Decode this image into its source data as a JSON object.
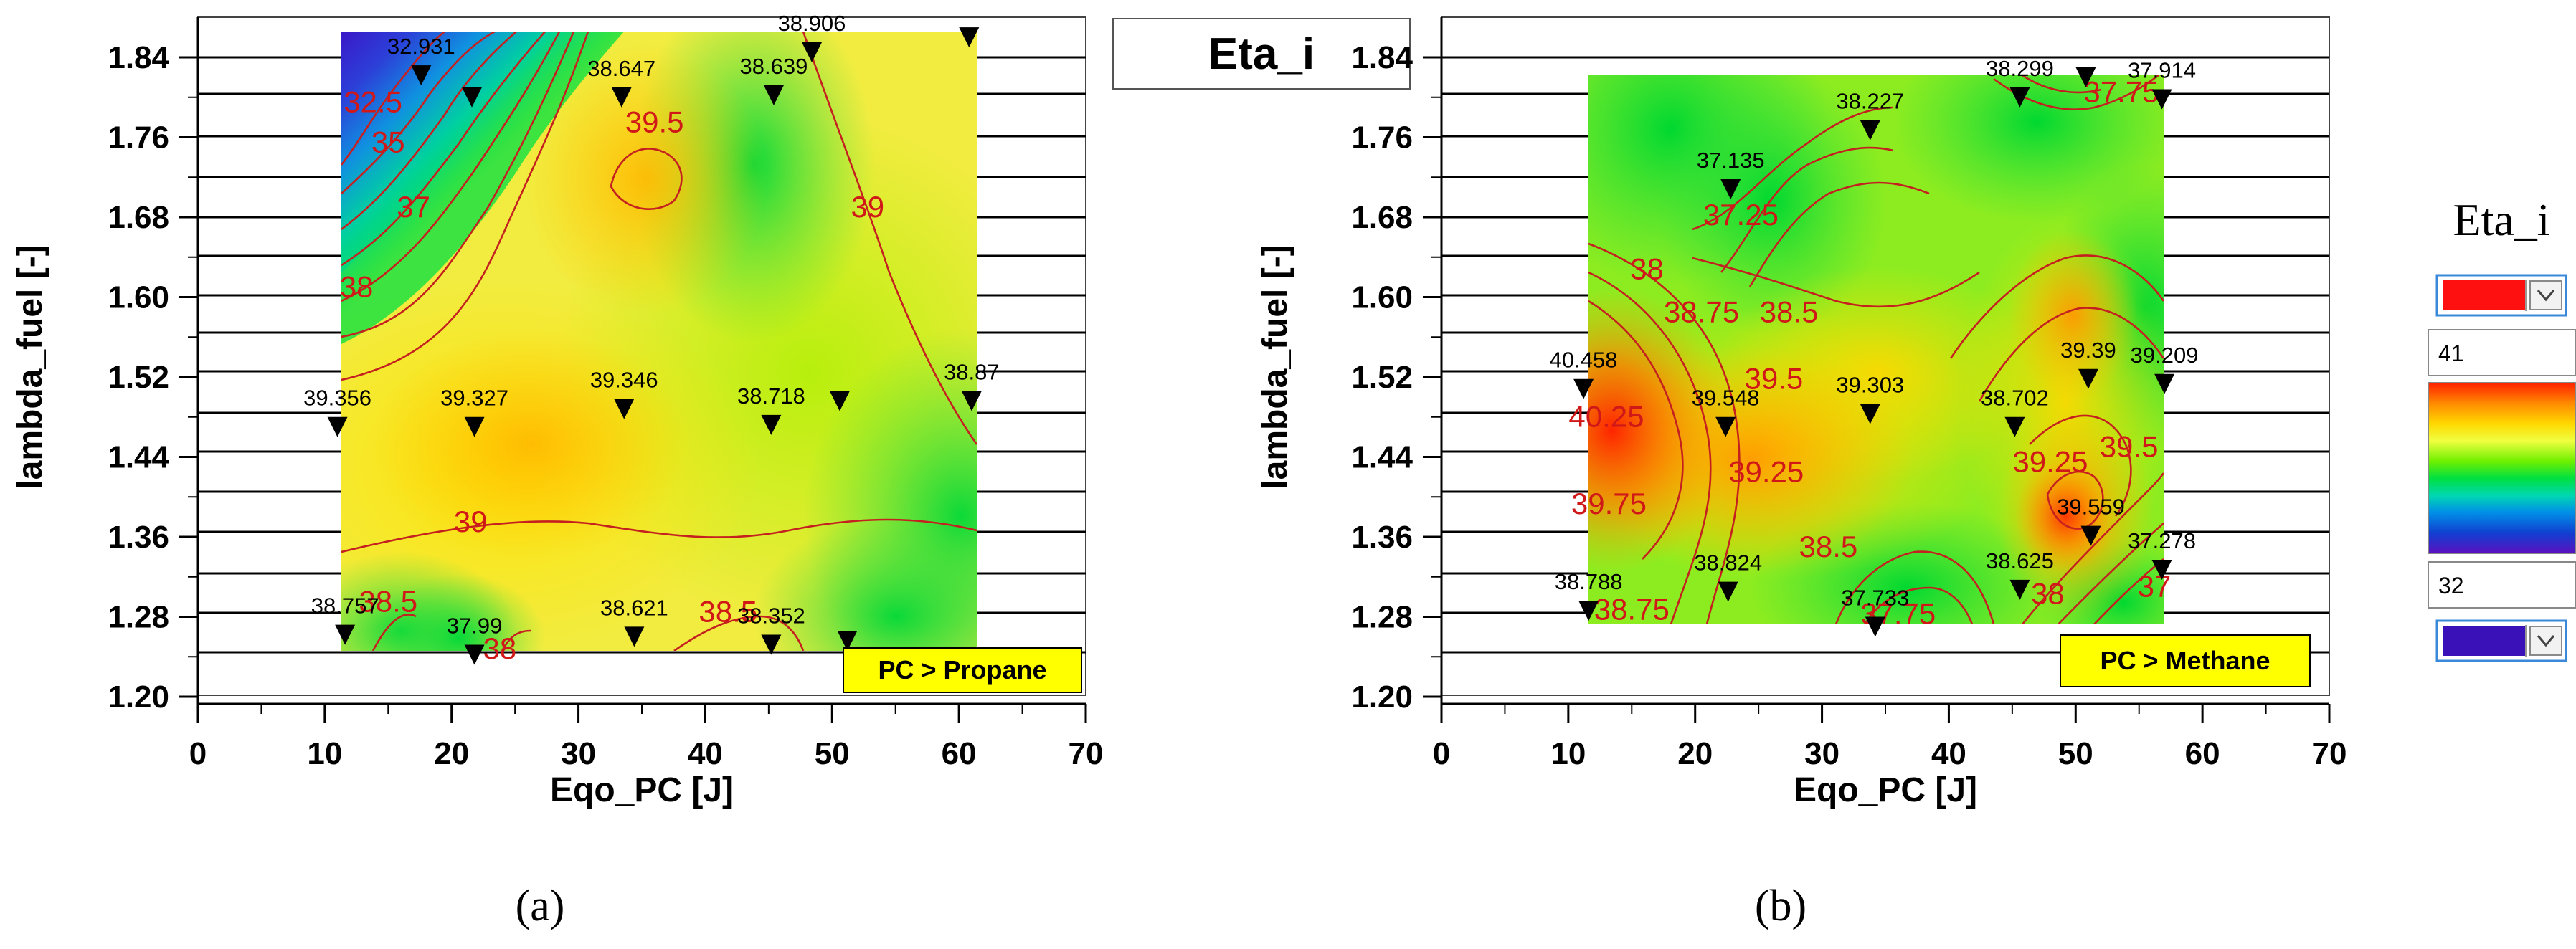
{
  "header": {
    "title": "Eta_i"
  },
  "legend": {
    "title": "Eta_i",
    "max_value": "41",
    "min_value": "32",
    "max_color": "#ff1010",
    "min_color": "#3a10b8",
    "gradient_colors": [
      "#ff2000",
      "#ff8a00",
      "#ffd800",
      "#f4ff40",
      "#7cf000",
      "#00e040",
      "#00d8b0",
      "#0090e8",
      "#1040d0",
      "#5a10c0"
    ]
  },
  "chart_data": [
    {
      "type": "contour",
      "subplot_label": "(a)",
      "tag": "PC > Propane",
      "xlabel": "Eqo_PC [J]",
      "ylabel": "lambda_fuel [-]",
      "xlim": [
        0,
        70
      ],
      "ylim": [
        1.2,
        1.88
      ],
      "x_ticks": [
        "0",
        "10",
        "20",
        "30",
        "40",
        "50",
        "60",
        "70"
      ],
      "y_ticks": [
        "1.20",
        "1.28",
        "1.36",
        "1.44",
        "1.52",
        "1.60",
        "1.68",
        "1.76",
        "1.84"
      ],
      "points": [
        {
          "x": 17.6,
          "y": 1.822,
          "label": "32.931"
        },
        {
          "x": 21.6,
          "y": 1.8,
          "label": ""
        },
        {
          "x": 33.4,
          "y": 1.8,
          "label": "38.647"
        },
        {
          "x": 45.4,
          "y": 1.802,
          "label": "38.639"
        },
        {
          "x": 48.4,
          "y": 1.845,
          "label": "38.906"
        },
        {
          "x": 60.8,
          "y": 1.86,
          "label": ""
        },
        {
          "x": 11.0,
          "y": 1.47,
          "label": "39.356"
        },
        {
          "x": 21.8,
          "y": 1.47,
          "label": "39.327"
        },
        {
          "x": 33.6,
          "y": 1.488,
          "label": "39.346"
        },
        {
          "x": 45.2,
          "y": 1.472,
          "label": "38.718"
        },
        {
          "x": 50.6,
          "y": 1.496,
          "label": ""
        },
        {
          "x": 61.0,
          "y": 1.496,
          "label": "38.87"
        },
        {
          "x": 11.6,
          "y": 1.262,
          "label": "38.757"
        },
        {
          "x": 21.8,
          "y": 1.242,
          "label": "37.99"
        },
        {
          "x": 34.4,
          "y": 1.26,
          "label": "38.621"
        },
        {
          "x": 45.2,
          "y": 1.252,
          "label": "38.352"
        },
        {
          "x": 51.2,
          "y": 1.256,
          "label": ""
        }
      ],
      "contour_labels": [
        {
          "text": "32.5",
          "x": 13.8,
          "y": 1.785
        },
        {
          "text": "35",
          "x": 15.0,
          "y": 1.745
        },
        {
          "text": "37",
          "x": 17.0,
          "y": 1.68
        },
        {
          "text": "39.5",
          "x": 36.0,
          "y": 1.765
        },
        {
          "text": "39",
          "x": 52.8,
          "y": 1.68
        },
        {
          "text": "38",
          "x": 12.5,
          "y": 1.6
        },
        {
          "text": "39",
          "x": 21.5,
          "y": 1.365
        },
        {
          "text": "38.5",
          "x": 15.0,
          "y": 1.285
        },
        {
          "text": "38.5",
          "x": 41.8,
          "y": 1.275
        },
        {
          "text": "38",
          "x": 23.8,
          "y": 1.238
        }
      ]
    },
    {
      "type": "contour",
      "subplot_label": "(b)",
      "tag": "PC > Methane",
      "xlabel": "Eqo_PC [J]",
      "ylabel": "lambda_fuel [-]",
      "xlim": [
        0,
        70
      ],
      "ylim": [
        1.2,
        1.88
      ],
      "x_ticks": [
        "0",
        "10",
        "20",
        "30",
        "40",
        "50",
        "60",
        "70"
      ],
      "y_ticks": [
        "1.20",
        "1.28",
        "1.36",
        "1.44",
        "1.52",
        "1.60",
        "1.68",
        "1.76",
        "1.84"
      ],
      "points": [
        {
          "x": 45.6,
          "y": 1.8,
          "label": "38.299"
        },
        {
          "x": 50.8,
          "y": 1.82,
          "label": ""
        },
        {
          "x": 56.8,
          "y": 1.798,
          "label": "37.914"
        },
        {
          "x": 33.8,
          "y": 1.767,
          "label": "38.227"
        },
        {
          "x": 22.8,
          "y": 1.708,
          "label": "37.135"
        },
        {
          "x": 11.2,
          "y": 1.508,
          "label": "40.458"
        },
        {
          "x": 22.4,
          "y": 1.47,
          "label": "39.548"
        },
        {
          "x": 33.8,
          "y": 1.483,
          "label": "39.303"
        },
        {
          "x": 45.2,
          "y": 1.47,
          "label": "38.702"
        },
        {
          "x": 51.0,
          "y": 1.518,
          "label": "39.39"
        },
        {
          "x": 57.0,
          "y": 1.513,
          "label": "39.209"
        },
        {
          "x": 51.2,
          "y": 1.361,
          "label": "39.559"
        },
        {
          "x": 56.8,
          "y": 1.327,
          "label": "37.278"
        },
        {
          "x": 11.6,
          "y": 1.286,
          "label": "38.788"
        },
        {
          "x": 22.6,
          "y": 1.305,
          "label": "38.824"
        },
        {
          "x": 34.2,
          "y": 1.27,
          "label": "37.733"
        },
        {
          "x": 45.6,
          "y": 1.307,
          "label": "38.625"
        }
      ],
      "contour_labels": [
        {
          "text": "37.75",
          "x": 53.6,
          "y": 1.795
        },
        {
          "text": "37.25",
          "x": 23.6,
          "y": 1.672
        },
        {
          "text": "38",
          "x": 16.2,
          "y": 1.618
        },
        {
          "text": "38.75",
          "x": 20.5,
          "y": 1.575
        },
        {
          "text": "38.5",
          "x": 27.4,
          "y": 1.575
        },
        {
          "text": "40.25",
          "x": 13.0,
          "y": 1.47
        },
        {
          "text": "39.5",
          "x": 26.2,
          "y": 1.508
        },
        {
          "text": "39.25",
          "x": 25.6,
          "y": 1.415
        },
        {
          "text": "39.25",
          "x": 48.0,
          "y": 1.425
        },
        {
          "text": "39.5",
          "x": 54.2,
          "y": 1.44
        },
        {
          "text": "39.75",
          "x": 13.2,
          "y": 1.383
        },
        {
          "text": "38.5",
          "x": 30.5,
          "y": 1.34
        },
        {
          "text": "38.75",
          "x": 15.0,
          "y": 1.277
        },
        {
          "text": "37.75",
          "x": 36.0,
          "y": 1.273
        },
        {
          "text": "38",
          "x": 47.8,
          "y": 1.293
        },
        {
          "text": "37",
          "x": 56.2,
          "y": 1.3
        }
      ]
    }
  ]
}
